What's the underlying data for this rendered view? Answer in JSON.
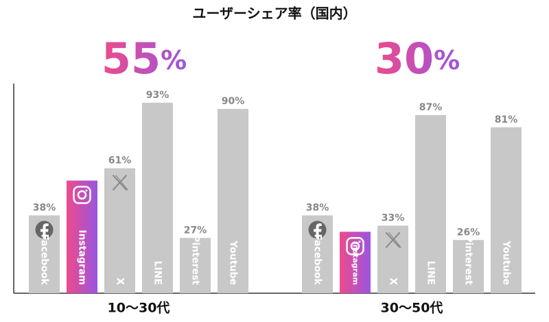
{
  "title": "ユーザーシェア率（国内）",
  "chart_data": [
    {
      "type": "bar",
      "x_label": "10〜30代",
      "categories": [
        "Facebook",
        "Instagram",
        "X",
        "LINE",
        "Pinterest",
        "Youtube"
      ],
      "values": [
        38,
        55,
        61,
        93,
        27,
        90
      ],
      "value_labels": [
        "38%",
        "55%",
        "61%",
        "93%",
        "27%",
        "90%"
      ],
      "colors": [
        "#c8c8c8",
        [
          "#ee4a8b",
          "#9a56e0"
        ],
        "#c8c8c8",
        "#c8c8c8",
        "#c8c8c8",
        "#c8c8c8"
      ],
      "ylim": [
        0,
        100
      ]
    },
    {
      "type": "bar",
      "x_label": "30〜50代",
      "categories": [
        "Facebook",
        "Instagram",
        "X",
        "LINE",
        "Pinterest",
        "Youtube"
      ],
      "values": [
        38,
        30,
        33,
        87,
        26,
        81
      ],
      "value_labels": [
        "38%",
        "30%",
        "33%",
        "87%",
        "26%",
        "81%"
      ],
      "colors": [
        "#c8c8c8",
        [
          "#ee4a8b",
          "#9a56e0"
        ],
        "#c8c8c8",
        "#c8c8c8",
        "#c8c8c8",
        "#c8c8c8"
      ],
      "ylim": [
        0,
        100
      ]
    }
  ]
}
